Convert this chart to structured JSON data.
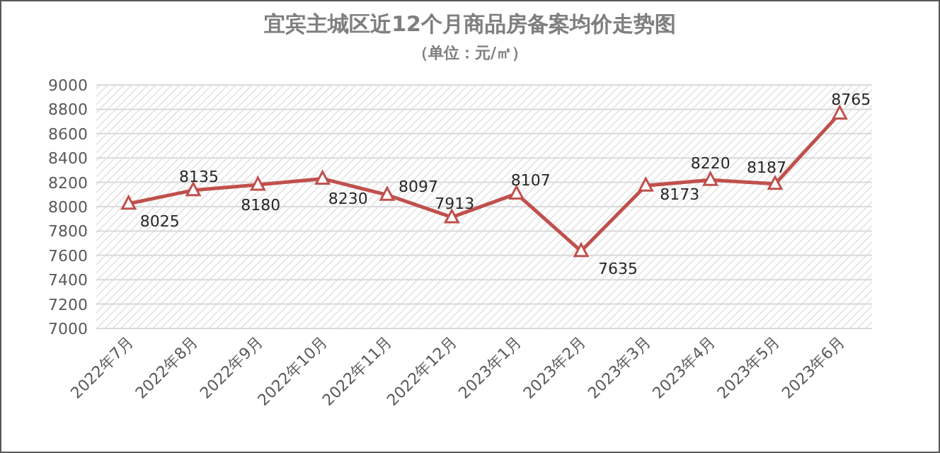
{
  "chart_data": {
    "type": "line",
    "title": "宜宾主城区近12个月商品房备案均价走势图",
    "subtitle": "（单位：元/㎡）",
    "categories": [
      "2022年7月",
      "2022年8月",
      "2022年9月",
      "2022年10月",
      "2022年11月",
      "2022年12月",
      "2023年1月",
      "2023年2月",
      "2023年3月",
      "2023年4月",
      "2023年5月",
      "2023年6月"
    ],
    "series": [
      {
        "color": "#c0504d",
        "values": [
          8025,
          8135,
          8180,
          8230,
          8097,
          7913,
          8107,
          7635,
          8173,
          8220,
          8187,
          8765
        ]
      }
    ],
    "ylim": [
      7000,
      9000
    ],
    "yticks": [
      7000,
      7200,
      7400,
      7600,
      7800,
      8000,
      8200,
      8400,
      8600,
      8800,
      9000
    ],
    "grid": "y",
    "marker": "triangle",
    "line_style": "solid",
    "data_labels": true
  }
}
